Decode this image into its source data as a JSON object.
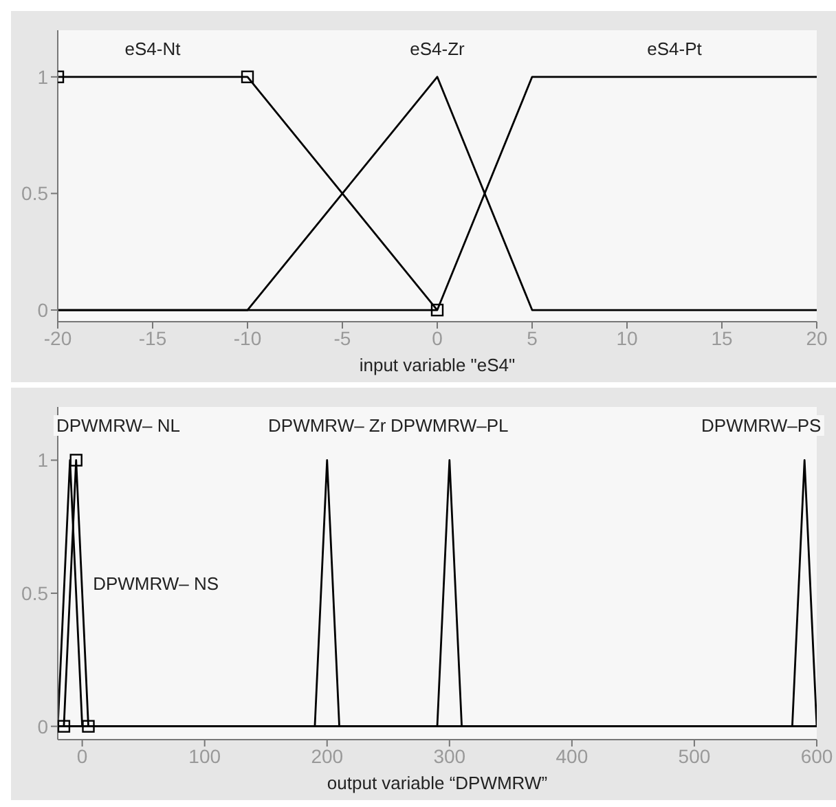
{
  "chart_data": [
    {
      "type": "line",
      "xlabel": "input variable \"eS4\"",
      "xlim": [
        -20,
        20
      ],
      "xticks": [
        -20,
        -15,
        -10,
        -5,
        0,
        5,
        10,
        15,
        20
      ],
      "ylim": [
        -0.05,
        1.2
      ],
      "yticks": [
        0,
        0.5,
        1
      ],
      "series": [
        {
          "name": "eS4-Nt",
          "color": "#000000",
          "marker": "square",
          "x": [
            -20,
            -10,
            0
          ],
          "values": [
            1,
            1,
            0
          ]
        },
        {
          "name": "eS4-Zr",
          "color": "#000000",
          "x": [
            -20,
            -10,
            0,
            5,
            20
          ],
          "values": [
            0,
            0,
            1,
            0,
            0
          ]
        },
        {
          "name": "eS4-Pt",
          "color": "#000000",
          "x": [
            -20,
            0,
            5,
            20
          ],
          "values": [
            0,
            0,
            1,
            1
          ]
        }
      ]
    },
    {
      "type": "line",
      "xlabel": "output variable “DPWMRW”",
      "xlim": [
        -20,
        600
      ],
      "xticks": [
        0,
        100,
        200,
        300,
        400,
        500,
        600
      ],
      "ylim": [
        -0.05,
        1.2
      ],
      "yticks": [
        0,
        0.5,
        1
      ],
      "series": [
        {
          "name": "DPWMRW– NL",
          "color": "#000000",
          "x": [
            -20,
            -10,
            0,
            600
          ],
          "values": [
            0,
            1,
            0,
            0
          ]
        },
        {
          "name": "DPWMRW– NS",
          "color": "#000000",
          "marker": "square",
          "x": [
            -15,
            -5,
            5
          ],
          "values": [
            0,
            1,
            0
          ]
        },
        {
          "name": "DPWMRW– Zr",
          "color": "#000000",
          "x": [
            -20,
            190,
            200,
            210,
            600
          ],
          "values": [
            0,
            0,
            1,
            0,
            0
          ]
        },
        {
          "name": "DPWMRW–PL",
          "color": "#000000",
          "x": [
            -20,
            290,
            300,
            310,
            600
          ],
          "values": [
            0,
            0,
            1,
            0,
            0
          ]
        },
        {
          "name": "DPWMRW–PS",
          "color": "#000000",
          "x": [
            -20,
            580,
            590,
            600
          ],
          "values": [
            0,
            0,
            1,
            0
          ]
        }
      ]
    }
  ]
}
